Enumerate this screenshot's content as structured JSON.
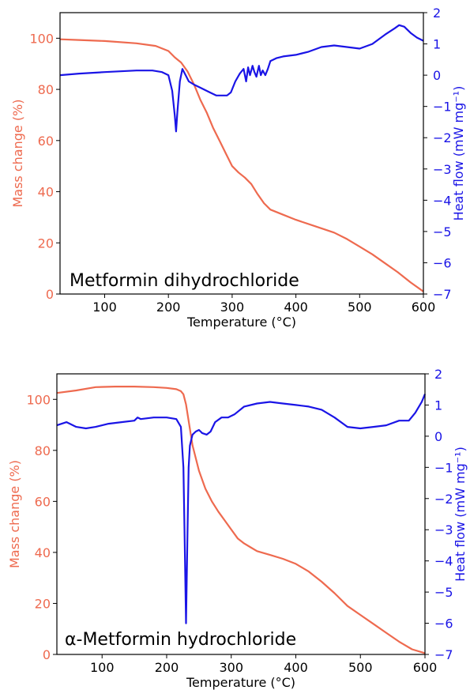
{
  "colors": {
    "mass": "#ee6a4f",
    "heat": "#1a14e6",
    "axis": "#000000"
  },
  "chart_data": [
    {
      "type": "line",
      "title": "Metformin dihydrochloride",
      "xlabel": "Temperature (°C)",
      "ylabel": "Mass change (%)",
      "y2label": "Heat flow (mW mg⁻¹)",
      "xlim": [
        30,
        600
      ],
      "ylim": [
        0,
        110
      ],
      "y2lim": [
        -7,
        2
      ],
      "xticks": [
        100,
        200,
        300,
        400,
        500,
        600
      ],
      "yticks": [
        0,
        20,
        40,
        60,
        80,
        100
      ],
      "y2ticks": [
        -7,
        -6,
        -5,
        -4,
        -3,
        -2,
        -1,
        0,
        1,
        2
      ],
      "series": [
        {
          "axis": "left",
          "x": [
            30,
            60,
            100,
            150,
            180,
            200,
            210,
            220,
            230,
            240,
            250,
            260,
            270,
            280,
            290,
            300,
            310,
            320,
            330,
            340,
            350,
            360,
            380,
            400,
            430,
            460,
            480,
            500,
            520,
            540,
            560,
            580,
            600
          ],
          "y": [
            99.6,
            99.3,
            98.9,
            98.0,
            97.0,
            95.0,
            92.5,
            90.5,
            87.0,
            82.0,
            76.0,
            71.0,
            65.0,
            60.0,
            55.0,
            50.0,
            47.5,
            45.5,
            43.0,
            39.0,
            35.5,
            33.0,
            31.0,
            29.0,
            26.5,
            24.0,
            21.5,
            18.5,
            15.5,
            12.0,
            8.5,
            4.5,
            1.0
          ]
        },
        {
          "axis": "right",
          "x": [
            30,
            60,
            100,
            150,
            175,
            190,
            200,
            206,
            210,
            212,
            214,
            218,
            222,
            227,
            232,
            240,
            250,
            265,
            275,
            285,
            292,
            298,
            305,
            312,
            318,
            322,
            325,
            328,
            332,
            335,
            338,
            342,
            345,
            348,
            352,
            356,
            360,
            370,
            380,
            400,
            420,
            440,
            460,
            480,
            500,
            520,
            540,
            555,
            562,
            570,
            580,
            590,
            600
          ],
          "y": [
            0.0,
            0.05,
            0.1,
            0.15,
            0.15,
            0.1,
            0.0,
            -0.5,
            -1.3,
            -1.8,
            -1.2,
            -0.2,
            0.2,
            0.0,
            -0.2,
            -0.3,
            -0.4,
            -0.55,
            -0.65,
            -0.65,
            -0.65,
            -0.55,
            -0.2,
            0.05,
            0.2,
            -0.2,
            0.25,
            0.0,
            0.3,
            0.1,
            -0.05,
            0.3,
            0.0,
            0.15,
            0.0,
            0.2,
            0.45,
            0.55,
            0.6,
            0.65,
            0.75,
            0.9,
            0.95,
            0.9,
            0.85,
            1.0,
            1.3,
            1.5,
            1.6,
            1.55,
            1.35,
            1.2,
            1.1
          ]
        }
      ]
    },
    {
      "type": "line",
      "title": "α-Metformin hydrochloride",
      "xlabel": "Temperature (°C)",
      "ylabel": "Mass change (%)",
      "y2label": "Heat flow (mW mg⁻¹)",
      "xlim": [
        30,
        600
      ],
      "ylim": [
        0,
        110
      ],
      "y2lim": [
        -7,
        2
      ],
      "xticks": [
        100,
        200,
        300,
        400,
        500,
        600
      ],
      "yticks": [
        0,
        20,
        40,
        60,
        80,
        100
      ],
      "y2ticks": [
        -7,
        -6,
        -5,
        -4,
        -3,
        -2,
        -1,
        0,
        1,
        2
      ],
      "series": [
        {
          "axis": "left",
          "x": [
            30,
            60,
            90,
            120,
            150,
            180,
            200,
            215,
            222,
            226,
            230,
            235,
            240,
            250,
            260,
            270,
            280,
            290,
            300,
            310,
            320,
            330,
            340,
            360,
            380,
            400,
            420,
            440,
            460,
            480,
            500,
            520,
            540,
            560,
            580,
            600
          ],
          "y": [
            102.5,
            103.5,
            104.8,
            105.0,
            105.0,
            104.8,
            104.5,
            104.0,
            103.2,
            102.0,
            98.0,
            90.0,
            82.0,
            72.0,
            65.0,
            60.0,
            56.0,
            52.5,
            49.0,
            45.5,
            43.5,
            42.0,
            40.5,
            39.0,
            37.5,
            35.5,
            32.5,
            28.5,
            24.0,
            19.0,
            15.5,
            12.0,
            8.5,
            5.0,
            2.0,
            0.5
          ]
        },
        {
          "axis": "right",
          "x": [
            30,
            45,
            60,
            75,
            90,
            110,
            130,
            150,
            155,
            160,
            180,
            200,
            215,
            222,
            226,
            228,
            230,
            232,
            234,
            236,
            240,
            245,
            250,
            255,
            262,
            268,
            275,
            285,
            295,
            305,
            320,
            340,
            360,
            380,
            400,
            420,
            440,
            460,
            480,
            500,
            520,
            540,
            560,
            575,
            585,
            595,
            600
          ],
          "y": [
            0.35,
            0.45,
            0.3,
            0.25,
            0.3,
            0.4,
            0.45,
            0.5,
            0.6,
            0.55,
            0.6,
            0.6,
            0.55,
            0.3,
            -1.0,
            -3.5,
            -6.0,
            -3.5,
            -1.0,
            -0.3,
            0.05,
            0.15,
            0.2,
            0.1,
            0.05,
            0.15,
            0.45,
            0.6,
            0.6,
            0.7,
            0.95,
            1.05,
            1.1,
            1.05,
            1.0,
            0.95,
            0.85,
            0.6,
            0.3,
            0.25,
            0.3,
            0.35,
            0.5,
            0.5,
            0.75,
            1.1,
            1.35
          ]
        }
      ]
    }
  ]
}
